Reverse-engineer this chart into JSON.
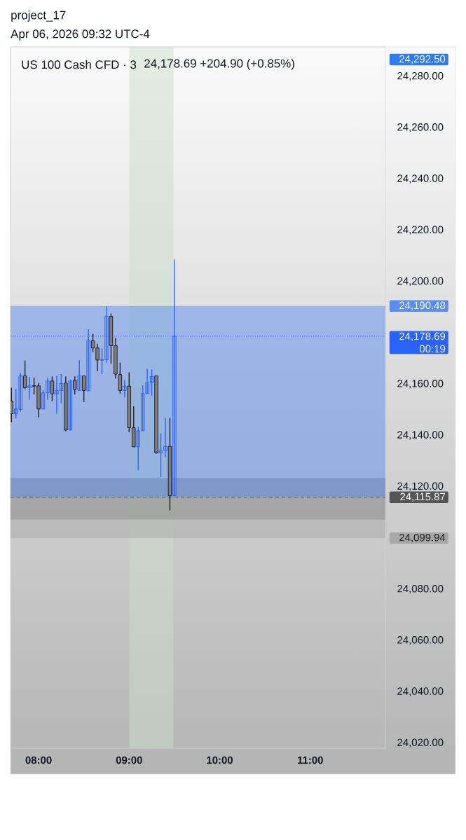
{
  "chart_data": {
    "type": "candlestick",
    "title": "US 100 Cash CFD · 3",
    "subtitle": "24,178.69  +204.90 (+0.85%)",
    "annotations": [
      "project_17",
      "Apr 06, 2026 09:32 UTC-4",
      "24,292.50",
      "00:19"
    ],
    "x": [
      7.7,
      7.75,
      7.8,
      7.85,
      7.9,
      7.95,
      8.0,
      8.05,
      8.1,
      8.15,
      8.2,
      8.25,
      8.3,
      8.35,
      8.4,
      8.45,
      8.5,
      8.55,
      8.6,
      8.65,
      8.7,
      8.75,
      8.8,
      8.85,
      8.9,
      8.95,
      9.0,
      9.05,
      9.1,
      9.15,
      9.2,
      9.25,
      9.3,
      9.35,
      9.4,
      9.45,
      9.5
    ],
    "ohlc": [
      [
        24153.4,
        24158.6,
        24145.2,
        24148.4
      ],
      [
        24148.4,
        24158.0,
        24146.6,
        24150.3
      ],
      [
        24150.1,
        24164.3,
        24149.3,
        24163.2
      ],
      [
        24163.2,
        24169.2,
        24158.0,
        24158.6
      ],
      [
        24158.6,
        24162.8,
        24153.9,
        24159.3
      ],
      [
        24159.4,
        24162.5,
        24155.9,
        24159.2
      ],
      [
        24159.3,
        24160.4,
        24147.0,
        24150.3
      ],
      [
        24150.3,
        24157.7,
        24150.3,
        24156.6
      ],
      [
        24156.6,
        24162.5,
        24153.9,
        24161.2
      ],
      [
        24161.2,
        24163.0,
        24153.4,
        24156.2
      ],
      [
        24156.2,
        24163.2,
        24148.4,
        24157.5
      ],
      [
        24157.5,
        24163.9,
        24152.5,
        24160.2
      ],
      [
        24160.4,
        24163.0,
        24141.6,
        24142.1
      ],
      [
        24142.1,
        24161.6,
        24141.9,
        24161.4
      ],
      [
        24161.4,
        24163.0,
        24155.9,
        24158.0
      ],
      [
        24157.5,
        24169.5,
        24157.5,
        24163.2
      ],
      [
        24163.2,
        24163.2,
        24153.0,
        24157.5
      ],
      [
        24157.4,
        24181.4,
        24157.4,
        24176.9
      ],
      [
        24176.9,
        24179.6,
        24172.5,
        24174.1
      ],
      [
        24174.1,
        24175.7,
        24165.0,
        24169.4
      ],
      [
        24169.3,
        24173.9,
        24163.9,
        24169.5
      ],
      [
        24169.5,
        24190.3,
        24168.4,
        24186.4
      ],
      [
        24186.4,
        24187.5,
        24168.0,
        24175.0
      ],
      [
        24175.0,
        24178.0,
        24162.1,
        24163.9
      ],
      [
        24163.7,
        24168.4,
        24156.3,
        24157.5
      ],
      [
        24157.5,
        24161.6,
        24154.8,
        24159.2
      ],
      [
        24159.2,
        24164.6,
        24141.3,
        24143.0
      ],
      [
        24143.0,
        24151.4,
        24135.5,
        24135.5
      ],
      [
        24135.5,
        24143.2,
        24126.4,
        24141.8
      ],
      [
        24141.8,
        24159.6,
        24141.8,
        24156.3
      ],
      [
        24156.3,
        24166.0,
        24156.3,
        24160.5
      ],
      [
        24160.5,
        24165.7,
        24155.5,
        24163.0
      ],
      [
        24163.2,
        24163.2,
        24132.8,
        24133.2
      ],
      [
        24133.2,
        24140.7,
        24123.7,
        24134.1
      ],
      [
        24134.1,
        24146.8,
        24131.6,
        24135.7
      ],
      [
        24135.7,
        24146.8,
        24110.7,
        24116.5
      ],
      [
        24116.5,
        24208.6,
        24116.5,
        24178.69
      ]
    ],
    "colors": [
      "#808080",
      "#2962ff",
      "#2962ff",
      "#808080",
      "#2962ff",
      "#808080",
      "#808080",
      "#2962ff",
      "#2962ff",
      "#808080",
      "#2962ff",
      "#2962ff",
      "#808080",
      "#2962ff",
      "#808080",
      "#2962ff",
      "#808080",
      "#2962ff",
      "#808080",
      "#808080",
      "#2962ff",
      "#2962ff",
      "#808080",
      "#808080",
      "#808080",
      "#2962ff",
      "#808080",
      "#808080",
      "#2962ff",
      "#2962ff",
      "#2962ff",
      "#2962ff",
      "#808080",
      "#2962ff",
      "#2962ff",
      "#808080",
      "#2962ff"
    ],
    "xlim": [
      7.69,
      11.83
    ],
    "ylim": [
      24018,
      24291.5
    ],
    "xticks": [
      {
        "value": 8,
        "label": "08:00"
      },
      {
        "value": 9,
        "label": "09:00"
      },
      {
        "value": 10,
        "label": "10:00"
      },
      {
        "value": 11,
        "label": "11:00"
      }
    ],
    "yticks": [
      {
        "value": 24020,
        "label": "24,020.00"
      },
      {
        "value": 24040,
        "label": "24,040.00"
      },
      {
        "value": 24060,
        "label": "24,060.00"
      },
      {
        "value": 24080,
        "label": "24,080.00"
      },
      {
        "value": 24120,
        "label": "24,120.00"
      },
      {
        "value": 24140,
        "label": "24,140.00"
      },
      {
        "value": 24160,
        "label": "24,160.00"
      },
      {
        "value": 24200,
        "label": "24,200.00"
      },
      {
        "value": 24220,
        "label": "24,220.00"
      },
      {
        "value": 24240,
        "label": "24,240.00"
      },
      {
        "value": 24260,
        "label": "24,260.00"
      },
      {
        "value": 24280,
        "label": "24,280.00"
      }
    ],
    "ref_lines": [
      {
        "axis": "y",
        "value": 24178.69,
        "label": "24,178.69",
        "color": "#2962ff",
        "line_style": "dotted"
      },
      {
        "axis": "y",
        "value": 24115.87,
        "label": "24,115.87",
        "color": "#555555",
        "line_style": "dashed"
      }
    ],
    "bands": [
      {
        "axis": "x",
        "from": 9.0,
        "to": 9.49,
        "color": "#cadeca"
      },
      {
        "axis": "y",
        "from": 24107.2,
        "to": 24123.3,
        "color": "#767676"
      },
      {
        "axis": "y",
        "from": 24115.87,
        "to": 24190.48,
        "label": "24,190.48",
        "color": "#5b8def"
      },
      {
        "axis": "y",
        "from": 24115.87,
        "to": 24099.94,
        "label": "24,099.94",
        "color": "#a8a8a8"
      }
    ]
  }
}
